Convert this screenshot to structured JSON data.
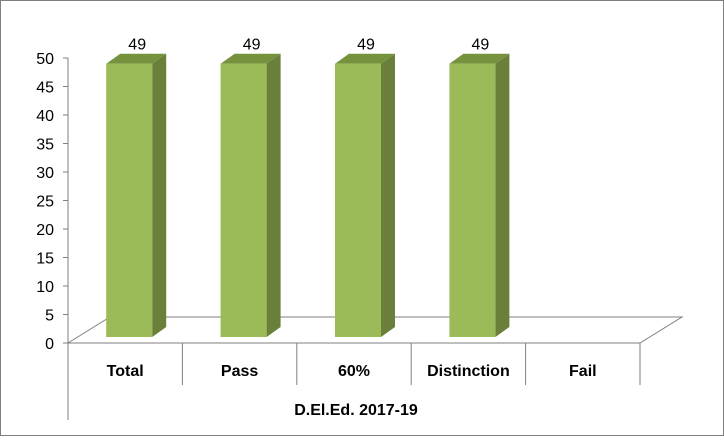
{
  "chart_data": {
    "type": "bar",
    "categories": [
      "Total",
      "Pass",
      "60%",
      "Distinction",
      "Fail"
    ],
    "values": [
      49,
      49,
      49,
      49,
      null
    ],
    "data_labels": [
      "49",
      "49",
      "49",
      "49",
      ""
    ],
    "group_label": "D.El.Ed. 2017-19",
    "title": "",
    "xlabel": "",
    "ylabel": "",
    "ylim": [
      0,
      50
    ],
    "yticks": [
      "0",
      "5",
      "10",
      "15",
      "20",
      "25",
      "30",
      "35",
      "40",
      "45",
      "50"
    ],
    "grid": false,
    "legend": "none",
    "style": "3d-column"
  },
  "colors": {
    "bar_front": "#9bbb59",
    "bar_side": "#6a7f3a",
    "bar_top": "#76923c",
    "axis": "#7f7f7f",
    "border": "#7f7f7f",
    "text": "#000000"
  }
}
